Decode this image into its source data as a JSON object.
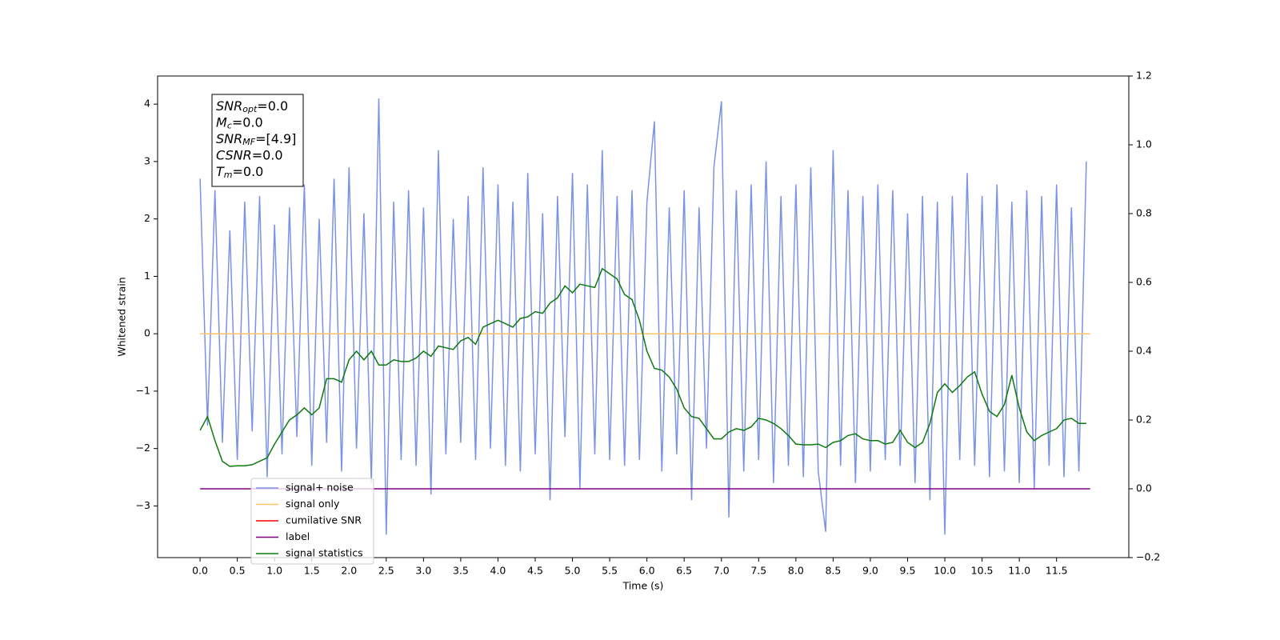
{
  "chart_data": {
    "type": "line",
    "xlabel": "Time (s)",
    "ylabel": "Whitened strain",
    "xlim": [
      -0.57,
      12.47
    ],
    "ylim": [
      -3.9,
      4.49
    ],
    "y2lim": [
      -0.2,
      1.2
    ],
    "xticks": [
      {
        "value": 0,
        "label": "0.0"
      },
      0.5,
      {
        "value": 1,
        "label": "1.0"
      },
      1.5,
      {
        "value": 2,
        "label": "2.0"
      },
      2.5,
      {
        "value": 3,
        "label": "3.0"
      },
      3.5,
      {
        "value": 4,
        "label": "4.0"
      },
      4.5,
      {
        "value": 5,
        "label": "5.0"
      },
      5.5,
      {
        "value": 6,
        "label": "6.0"
      },
      6.5,
      {
        "value": 7,
        "label": "7.0"
      },
      7.5,
      {
        "value": 8,
        "label": "8.0"
      },
      8.5,
      {
        "value": 9,
        "label": "9.0"
      },
      9.5,
      {
        "value": 10,
        "label": "10.0"
      },
      10.5,
      {
        "value": 11,
        "label": "11.0"
      },
      11.5
    ],
    "yticks": [
      {
        "value": -3,
        "label": "−3"
      },
      {
        "value": -2,
        "label": "−2"
      },
      {
        "value": -1,
        "label": "−1"
      },
      0,
      1,
      2,
      3,
      4
    ],
    "y2ticks": [
      {
        "value": -0.2,
        "label": "−0.2"
      },
      {
        "value": 0,
        "label": "0.0"
      },
      0.2,
      0.4,
      0.6,
      0.8,
      {
        "value": 1,
        "label": "1.0"
      },
      1.2
    ],
    "grid": false,
    "x": [
      0,
      0.1,
      0.2,
      0.3,
      0.4,
      0.5,
      0.6,
      0.7,
      0.8,
      0.9,
      1,
      1.1,
      1.2,
      1.3,
      1.4,
      1.5,
      1.6,
      1.7,
      1.8,
      1.9,
      2,
      2.1,
      2.2,
      2.3,
      2.4,
      2.5,
      2.6,
      2.7,
      2.8,
      2.9,
      3,
      3.1,
      3.2,
      3.3,
      3.4,
      3.5,
      3.6,
      3.7,
      3.8,
      3.9,
      4,
      4.1,
      4.2,
      4.3,
      4.4,
      4.5,
      4.6,
      4.7,
      4.8,
      4.9,
      5,
      5.1,
      5.2,
      5.3,
      5.4,
      5.5,
      5.6,
      5.7,
      5.8,
      5.9,
      6,
      6.1,
      6.2,
      6.3,
      6.4,
      6.5,
      6.6,
      6.7,
      6.8,
      6.9,
      7,
      7.1,
      7.2,
      7.3,
      7.4,
      7.5,
      7.6,
      7.7,
      7.8,
      7.9,
      8,
      8.1,
      8.2,
      8.3,
      8.4,
      8.5,
      8.6,
      8.7,
      8.8,
      8.9,
      9,
      9.1,
      9.2,
      9.3,
      9.4,
      9.5,
      9.6,
      9.7,
      9.8,
      9.9,
      10,
      10.1,
      10.2,
      10.3,
      10.4,
      10.5,
      10.6,
      10.7,
      10.8,
      10.9,
      11,
      11.1,
      11.2,
      11.3,
      11.4,
      11.5,
      11.6,
      11.7,
      11.8,
      11.9
    ],
    "series": [
      {
        "name": "signal+ noise",
        "color": "#7b93e6",
        "values": [
          2.7,
          -1.6,
          2.5,
          -1.9,
          1.8,
          -2.2,
          2.3,
          -1.7,
          2.4,
          -2.5,
          1.9,
          -2.1,
          2.2,
          -1.8,
          2.6,
          -2.3,
          2.0,
          -1.9,
          2.7,
          -2.4,
          2.9,
          -2.0,
          2.1,
          -2.6,
          4.1,
          -3.5,
          2.3,
          -2.2,
          2.5,
          -2.3,
          2.2,
          -2.8,
          3.2,
          -2.1,
          2.0,
          -1.9,
          2.4,
          -2.2,
          2.9,
          -2.0,
          2.6,
          -2.3,
          2.3,
          -2.4,
          2.8,
          -2.1,
          2.1,
          -2.9,
          2.4,
          -1.8,
          2.8,
          -2.7,
          2.6,
          -2.1,
          3.2,
          -2.2,
          2.4,
          -2.3,
          2.5,
          -2.2,
          2.3,
          3.7,
          -2.4,
          2.2,
          -2.1,
          2.5,
          -2.9,
          2.2,
          -2.0,
          2.9,
          4.05,
          -3.2,
          2.5,
          -2.4,
          2.6,
          -2.2,
          3.0,
          -2.6,
          2.4,
          -2.3,
          2.6,
          -2.5,
          2.9,
          -2.4,
          -3.45,
          3.2,
          -2.3,
          2.5,
          -2.6,
          2.4,
          -2.4,
          2.6,
          -2.2,
          2.5,
          -2.3,
          2.1,
          -2.6,
          2.4,
          -2.9,
          2.3,
          -3.5,
          2.4,
          -2.2,
          2.8,
          -2.3,
          2.4,
          -2.5,
          2.6,
          -2.4,
          2.3,
          -2.6,
          2.5,
          -2.7,
          2.4,
          -2.3,
          2.6,
          -2.5,
          2.2,
          -2.4,
          3.0
        ]
      },
      {
        "name": "signal only",
        "color": "#ffc36b",
        "x": [
          0,
          11.95
        ],
        "values": [
          0,
          0
        ]
      },
      {
        "name": "cumilative SNR",
        "color": "#ff0000",
        "x": [],
        "values": []
      },
      {
        "name": "label",
        "color": "#800080",
        "axis": "y2",
        "x": [
          0,
          11.95
        ],
        "values": [
          0,
          0
        ]
      },
      {
        "name": "signal statistics",
        "color": "#0e7a0e",
        "axis": "y2",
        "values": [
          0.17,
          0.21,
          0.14,
          0.08,
          0.065,
          0.067,
          0.067,
          0.07,
          0.08,
          0.09,
          0.13,
          0.165,
          0.2,
          0.215,
          0.235,
          0.215,
          0.235,
          0.32,
          0.32,
          0.31,
          0.375,
          0.4,
          0.375,
          0.4,
          0.36,
          0.36,
          0.375,
          0.37,
          0.37,
          0.38,
          0.4,
          0.385,
          0.415,
          0.41,
          0.405,
          0.43,
          0.44,
          0.42,
          0.47,
          0.48,
          0.49,
          0.48,
          0.47,
          0.495,
          0.5,
          0.515,
          0.51,
          0.54,
          0.555,
          0.59,
          0.57,
          0.595,
          0.59,
          0.585,
          0.64,
          0.625,
          0.61,
          0.565,
          0.55,
          0.49,
          0.4,
          0.35,
          0.345,
          0.325,
          0.29,
          0.235,
          0.21,
          0.205,
          0.175,
          0.145,
          0.145,
          0.165,
          0.175,
          0.17,
          0.18,
          0.205,
          0.2,
          0.19,
          0.175,
          0.155,
          0.13,
          0.128,
          0.128,
          0.13,
          0.12,
          0.135,
          0.14,
          0.155,
          0.16,
          0.145,
          0.14,
          0.14,
          0.13,
          0.135,
          0.17,
          0.135,
          0.12,
          0.135,
          0.19,
          0.28,
          0.305,
          0.28,
          0.3,
          0.325,
          0.34,
          0.275,
          0.225,
          0.21,
          0.245,
          0.33,
          0.235,
          0.165,
          0.14,
          0.155,
          0.165,
          0.175,
          0.2,
          0.205,
          0.19,
          0.19
        ]
      }
    ],
    "annotations": [
      {
        "main": "SNR",
        "sub": "opt",
        "rest": "=0.0"
      },
      {
        "main": "M",
        "sub": "c",
        "rest": "=0.0"
      },
      {
        "main": "SNR",
        "sub": "MF",
        "rest": "=[4.9]"
      },
      {
        "main": "CSNR",
        "rest": "=0.0"
      },
      {
        "main": "T",
        "sub": "m",
        "rest": "=0.0"
      }
    ]
  }
}
